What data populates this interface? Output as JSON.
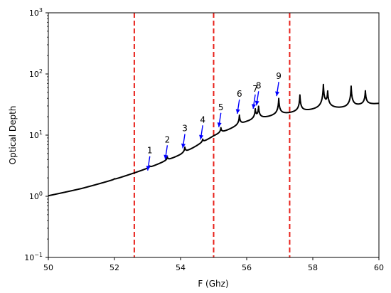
{
  "chart_data": {
    "type": "line",
    "xlabel": "F (Ghz)",
    "ylabel": "Optical Depth",
    "xlim": [
      50,
      60
    ],
    "ylim": [
      0.1,
      1000
    ],
    "yscale": "log",
    "grid": false,
    "xticks": [
      {
        "value": 50,
        "label": "50"
      },
      {
        "value": 52,
        "label": "52"
      },
      {
        "value": 54,
        "label": "54"
      },
      {
        "value": 56,
        "label": "56"
      },
      {
        "value": 58,
        "label": "58"
      },
      {
        "value": 60,
        "label": "60"
      }
    ],
    "yticks": [
      {
        "value": 0.1,
        "base": "10",
        "exp": "−1"
      },
      {
        "value": 1,
        "base": "10",
        "exp": "0"
      },
      {
        "value": 10,
        "base": "10",
        "exp": "1"
      },
      {
        "value": 100,
        "base": "10",
        "exp": "2"
      },
      {
        "value": 1000,
        "base": "10",
        "exp": "3"
      }
    ],
    "series": [
      {
        "color": "#000000",
        "baseline": [
          [
            50,
            0.52
          ],
          [
            51,
            0.76
          ],
          [
            52,
            1.2
          ],
          [
            53,
            2.0
          ],
          [
            54,
            3.6
          ],
          [
            55,
            8.0
          ],
          [
            56,
            13.5
          ],
          [
            57,
            18.0
          ],
          [
            58,
            21.0
          ],
          [
            59,
            23.0
          ],
          [
            60,
            30.0
          ]
        ],
        "peaks": [
          {
            "x": 52.0,
            "y": 1.25
          },
          {
            "x": 52.56,
            "y": 1.6
          },
          {
            "x": 53.07,
            "y": 2.25
          },
          {
            "x": 53.6,
            "y": 3.4
          },
          {
            "x": 54.13,
            "y": 5.2
          },
          {
            "x": 54.67,
            "y": 7.2
          },
          {
            "x": 55.22,
            "y": 11.5
          },
          {
            "x": 55.78,
            "y": 19.0
          },
          {
            "x": 56.26,
            "y": 23.0
          },
          {
            "x": 56.36,
            "y": 26.0
          },
          {
            "x": 56.97,
            "y": 37.0
          },
          {
            "x": 57.61,
            "y": 42.0
          },
          {
            "x": 58.32,
            "y": 62.0
          },
          {
            "x": 58.45,
            "y": 45.0
          },
          {
            "x": 59.16,
            "y": 60.0
          },
          {
            "x": 59.59,
            "y": 50.0
          }
        ]
      }
    ],
    "vlines": [
      {
        "x": 52.6,
        "color": "#e8221b",
        "style": "dashed"
      },
      {
        "x": 55.0,
        "color": "#e8221b",
        "style": "dashed"
      },
      {
        "x": 57.3,
        "color": "#e8221b",
        "style": "dashed"
      }
    ],
    "annotations": [
      {
        "label": "1",
        "x": 53.07,
        "y": 2.25,
        "color": "#0000ff"
      },
      {
        "label": "2",
        "x": 53.6,
        "y": 3.4,
        "color": "#0000ff"
      },
      {
        "label": "3",
        "x": 54.13,
        "y": 5.2,
        "color": "#0000ff"
      },
      {
        "label": "4",
        "x": 54.67,
        "y": 7.2,
        "color": "#0000ff"
      },
      {
        "label": "5",
        "x": 55.22,
        "y": 11.5,
        "color": "#0000ff"
      },
      {
        "label": "6",
        "x": 55.78,
        "y": 19.0,
        "color": "#0000ff"
      },
      {
        "label": "7",
        "x": 56.26,
        "y": 23.0,
        "color": "#0000ff"
      },
      {
        "label": "8",
        "x": 56.36,
        "y": 26.0,
        "color": "#0000ff"
      },
      {
        "label": "9",
        "x": 56.97,
        "y": 37.0,
        "color": "#0000ff"
      }
    ]
  }
}
